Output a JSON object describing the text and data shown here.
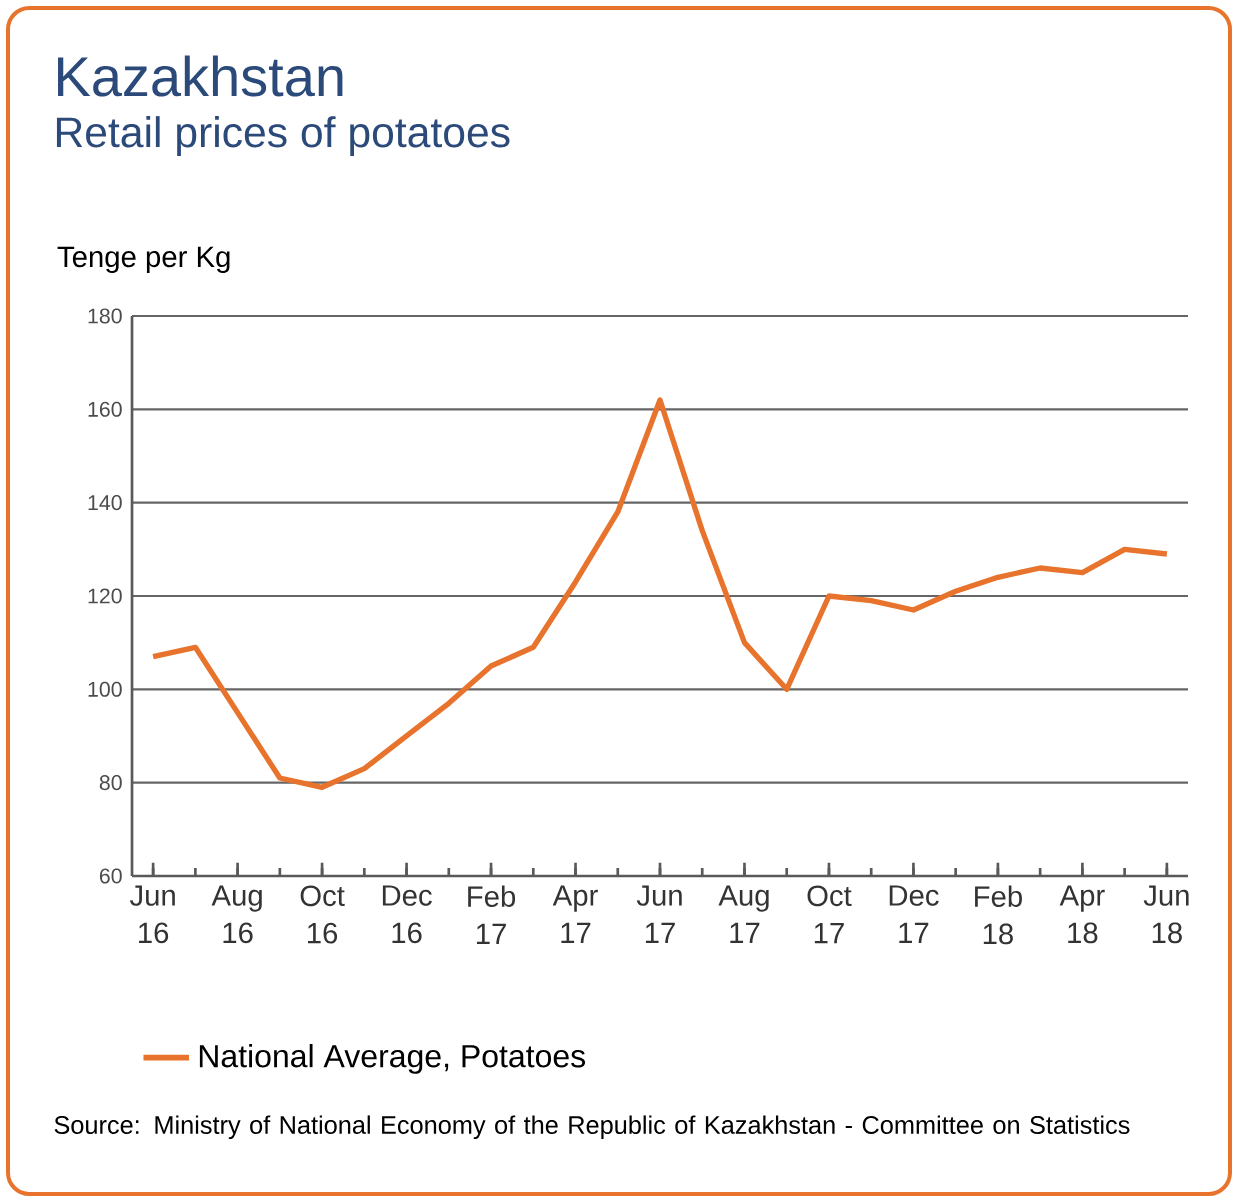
{
  "chart_data": {
    "type": "line",
    "title": "Kazakhstan",
    "subtitle": "Retail prices of potatoes",
    "ylabel": "Tenge per Kg",
    "categories": [
      "Jun 16",
      null,
      "Aug 16",
      null,
      "Oct 16",
      null,
      "Dec 16",
      null,
      "Feb 17",
      null,
      "Apr 17",
      null,
      "Jun 17",
      null,
      "Aug 17",
      null,
      "Oct 17",
      null,
      "Dec 17",
      null,
      "Feb 18",
      null,
      "Apr 18",
      null,
      "Jun 18"
    ],
    "series": [
      {
        "name": "National Average, Potatoes",
        "color": "#e8732c",
        "values": [
          107,
          109,
          95,
          81,
          79,
          83,
          90,
          97,
          105,
          109,
          123,
          138,
          162,
          134,
          110,
          100,
          120,
          119,
          117,
          121,
          124,
          126,
          125,
          130,
          129
        ]
      }
    ],
    "ylim": [
      60,
      180
    ],
    "yticks": [
      60,
      80,
      100,
      120,
      140,
      160,
      180
    ],
    "grid": "y",
    "legend": "bottom",
    "marker": "none",
    "line_style": "solid",
    "annotations": [
      "Source: Ministry of National Economy of the Republic of Kazakhstan - Committee on Statistics"
    ]
  }
}
